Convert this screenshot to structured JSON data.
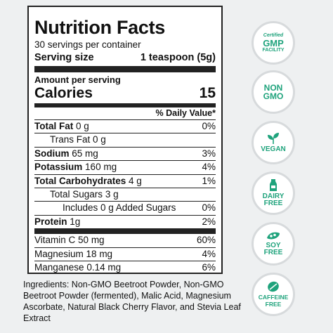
{
  "label": {
    "title": "Nutrition Facts",
    "servings": "30 servings per container",
    "serving_size_label": "Serving size",
    "serving_size_value": "1 teaspoon (5g)",
    "amount_per_serving": "Amount per serving",
    "calories_label": "Calories",
    "calories_value": "15",
    "daily_value_header": "% Daily Value*",
    "nutrients": [
      {
        "name": "Total Fat",
        "amount": "0 g",
        "dv": "0%"
      },
      {
        "name": "Trans Fat",
        "amount": "0 g",
        "dv": ""
      },
      {
        "name": "Sodium",
        "amount": "65 mg",
        "dv": "3%"
      },
      {
        "name": "Potassium",
        "amount": "160 mg",
        "dv": "4%"
      },
      {
        "name": "Total Carbohydrates",
        "amount": "4 g",
        "dv": "1%"
      },
      {
        "name": "Total Sugars",
        "amount": "3 g",
        "dv": ""
      },
      {
        "name": "Includes 0 g Added Sugars",
        "amount": "",
        "dv": "0%"
      },
      {
        "name": "Protein",
        "amount": "1g",
        "dv": "2%"
      }
    ],
    "vitamins": [
      {
        "name": "Vitamin C",
        "amount": "50 mg",
        "dv": "60%"
      },
      {
        "name": "Magnesium",
        "amount": "18 mg",
        "dv": "4%"
      },
      {
        "name": "Manganese",
        "amount": "0.14 mg",
        "dv": "6%"
      }
    ]
  },
  "ingredients": "Ingredients: Non-GMO Beetroot Powder, Non-GMO Beetroot Powder (fermented), Malic Acid, Magnesium Ascorbate, Natural Black Cherry Flavor, and Stevia Leaf Extract",
  "badges": {
    "gmp": {
      "line1": "Certified",
      "line2": "GMP",
      "line3": "FACILITY"
    },
    "nongmo": {
      "line1": "NON",
      "line2": "GMO"
    },
    "vegan": {
      "label": "VEGAN",
      "icon": "leaf-icon"
    },
    "dairy": {
      "line1": "DAIRY",
      "line2": "FREE",
      "icon": "milk-bottle-icon"
    },
    "soy": {
      "line1": "SOY",
      "line2": "FREE",
      "icon": "soybean-icon"
    },
    "caffeine": {
      "line1": "CAFFEINE",
      "line2": "FREE",
      "icon": "coffee-bean-icon"
    }
  },
  "colors": {
    "accent": "#1fa37c",
    "border": "#222222",
    "background": "#eef0f1"
  }
}
